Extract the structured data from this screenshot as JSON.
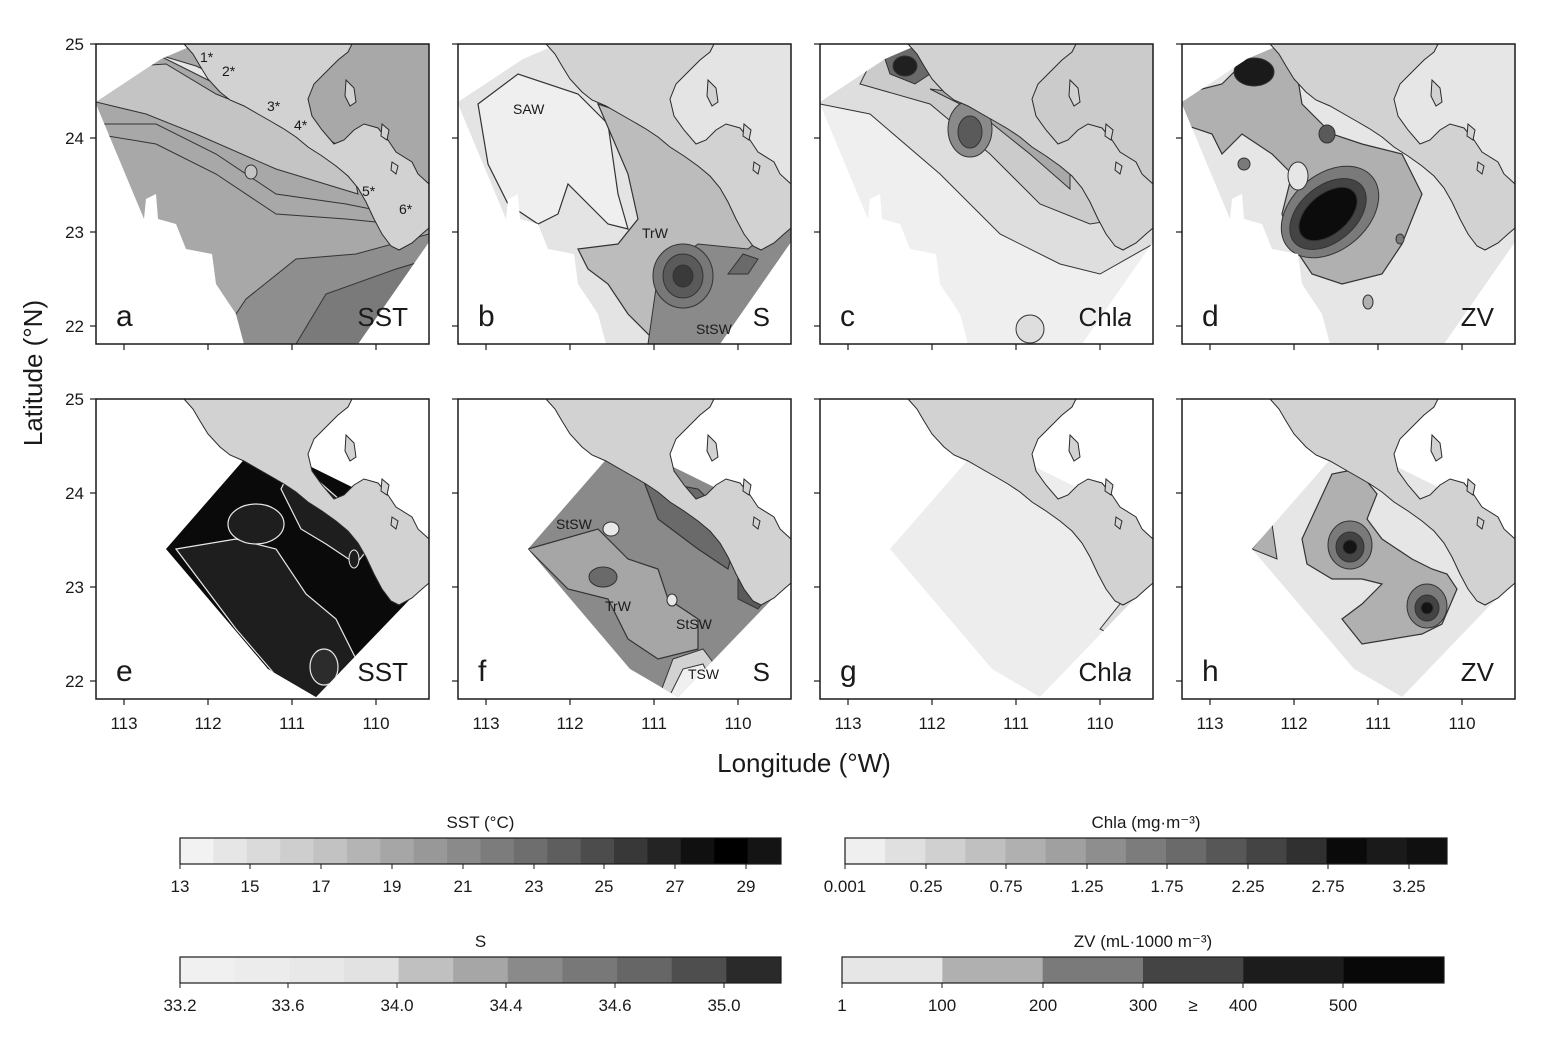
{
  "figure": {
    "y_axis_label": "Latitude (°N)",
    "x_axis_label": "Longitude (°W)",
    "lat_ticks": [
      "25",
      "24",
      "23",
      "22"
    ],
    "lon_ticks": [
      "113",
      "112",
      "111",
      "110"
    ]
  },
  "panels": [
    {
      "letter": "a",
      "variable": "SST",
      "italic_suffix": "",
      "labels": [
        "1*",
        "2*",
        "3*",
        "4*",
        "5*",
        "6*"
      ]
    },
    {
      "letter": "b",
      "variable": "S",
      "italic_suffix": "",
      "labels": [
        "SAW",
        "TrW",
        "StSW"
      ]
    },
    {
      "letter": "c",
      "variable": "Chl",
      "italic_suffix": "a",
      "labels": []
    },
    {
      "letter": "d",
      "variable": "ZV",
      "italic_suffix": "",
      "labels": []
    },
    {
      "letter": "e",
      "variable": "SST",
      "italic_suffix": "",
      "labels": []
    },
    {
      "letter": "f",
      "variable": "S",
      "italic_suffix": "",
      "labels": [
        "StSW",
        "TrW",
        "StSW",
        "TSW"
      ]
    },
    {
      "letter": "g",
      "variable": "Chl",
      "italic_suffix": "a",
      "labels": []
    },
    {
      "letter": "h",
      "variable": "ZV",
      "italic_suffix": "",
      "labels": []
    }
  ],
  "colorbars": [
    {
      "id": "sst",
      "title": "SST (°C)",
      "ticks": [
        "13",
        "15",
        "17",
        "19",
        "21",
        "23",
        "25",
        "27",
        "29"
      ],
      "colors": [
        "#f2f2f2",
        "#e6e6e6",
        "#dadada",
        "#cecece",
        "#c2c2c2",
        "#b4b4b4",
        "#a6a6a6",
        "#989898",
        "#8a8a8a",
        "#7c7c7c",
        "#6e6e6e",
        "#5e5e5e",
        "#4c4c4c",
        "#383838",
        "#242424",
        "#101010",
        "#000000",
        "#141414"
      ]
    },
    {
      "id": "chla",
      "title": "Chla (mg·m⁻³)",
      "ticks": [
        "0.001",
        "0.25",
        "0.75",
        "1.25",
        "1.75",
        "2.25",
        "2.75",
        "3.25"
      ],
      "colors": [
        "#efefef",
        "#e0e0e0",
        "#d0d0d0",
        "#c0c0c0",
        "#b0b0b0",
        "#a0a0a0",
        "#8e8e8e",
        "#7c7c7c",
        "#6a6a6a",
        "#575757",
        "#444444",
        "#303030",
        "#0a0a0a",
        "#1a1a1a",
        "#101010"
      ]
    },
    {
      "id": "s",
      "title": "S",
      "ticks": [
        "33.2",
        "33.6",
        "34.0",
        "34.4",
        "34.6",
        "35.0"
      ],
      "colors": [
        "#f0f0f0",
        "#ececec",
        "#e8e8e8",
        "#e2e2e2",
        "#c0c0c0",
        "#a6a6a6",
        "#8a8a8a",
        "#787878",
        "#666666",
        "#4e4e4e",
        "#2a2a2a"
      ]
    },
    {
      "id": "zv",
      "title": "ZV (mL·1000 m⁻³)",
      "ticks": [
        "1",
        "100",
        "200",
        "300",
        "≥",
        "400",
        "500"
      ],
      "colors": [
        "#e6e6e6",
        "#b0b0b0",
        "#7a7a7a",
        "#444444",
        "#1c1c1c",
        "#080808"
      ]
    }
  ]
}
